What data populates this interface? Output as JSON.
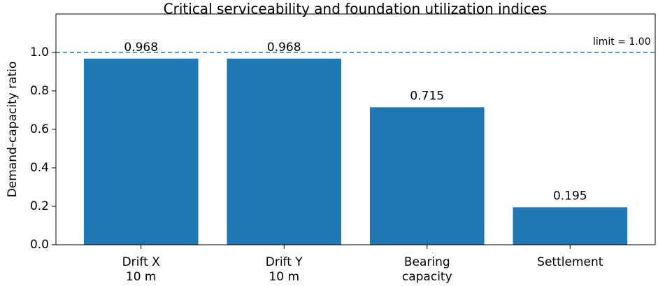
{
  "chart_data": {
    "type": "bar",
    "title": "Critical serviceability and foundation utilization indices",
    "y_label": "Demand-capacity ratio",
    "categories": [
      [
        "Drift X",
        "10 m"
      ],
      [
        "Drift Y",
        "10 m"
      ],
      [
        "Bearing",
        "capacity"
      ],
      [
        "Settlement"
      ]
    ],
    "values": [
      0.968,
      0.968,
      0.715,
      0.195
    ],
    "color": "#1f77b4",
    "ylim": [
      0,
      1.2
    ],
    "yticks": [
      {
        "value": 0,
        "label": "0.0"
      },
      {
        "value": 0.2,
        "label": "0.2"
      },
      {
        "value": 0.4,
        "label": "0.4"
      },
      {
        "value": 0.6,
        "label": "0.6"
      },
      {
        "value": 0.8,
        "label": "0.8"
      },
      {
        "value": 1.0,
        "label": "1.0"
      }
    ],
    "reference_line": {
      "value": 1.0,
      "label": "limit = 1.00",
      "color": "#1f77b4"
    }
  }
}
